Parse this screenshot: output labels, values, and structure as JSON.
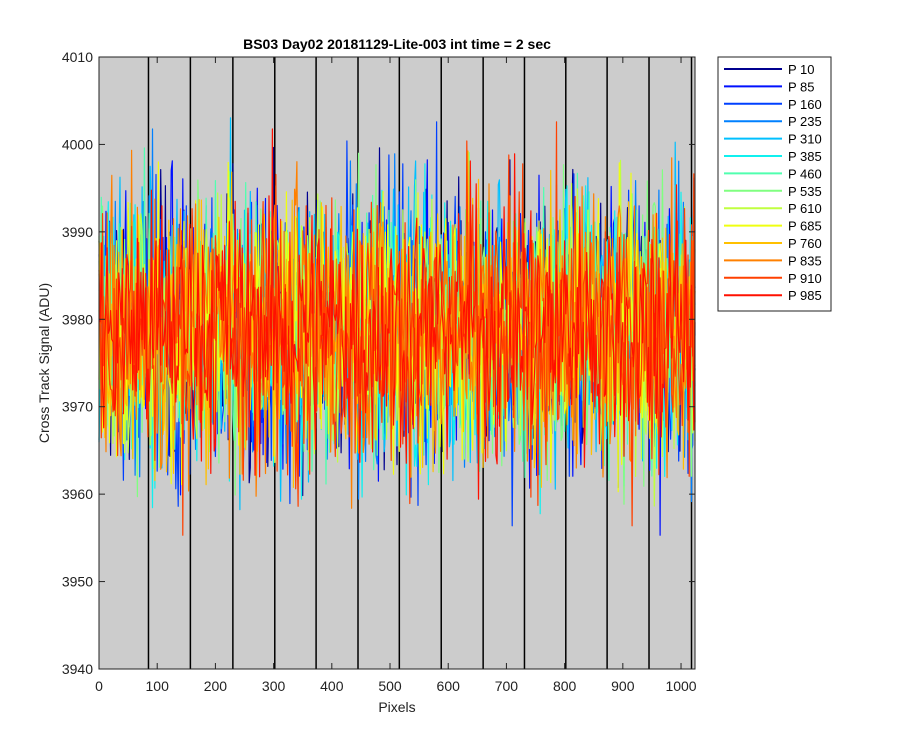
{
  "chart_data": {
    "type": "line",
    "title": "BS03 Day02 20181129-Lite-003 int time = 2 sec",
    "xlabel": "Pixels",
    "ylabel": "Cross Track Signal (ADU)",
    "xlim": [
      0,
      1024
    ],
    "ylim": [
      3940,
      4010
    ],
    "xticks": [
      0,
      100,
      200,
      300,
      400,
      500,
      600,
      700,
      800,
      900,
      1000
    ],
    "yticks": [
      3940,
      3950,
      3960,
      3970,
      3980,
      3990,
      4000,
      4010
    ],
    "vertical_lines_x": [
      85,
      157,
      230,
      302,
      373,
      445,
      516,
      588,
      660,
      731,
      802,
      873,
      945,
      1018
    ],
    "plot_background": "#cccccc",
    "vertical_line_color": "#000000",
    "legend_position": "outside-top-right",
    "series_summary": {
      "mean": 3979,
      "noise_range": [
        3955,
        3997
      ]
    },
    "series": [
      {
        "name": "P 10",
        "color": "#00008f"
      },
      {
        "name": "P 85",
        "color": "#0010ff"
      },
      {
        "name": "P 160",
        "color": "#0040ff"
      },
      {
        "name": "P 235",
        "color": "#0080ff"
      },
      {
        "name": "P 310",
        "color": "#00c0ff"
      },
      {
        "name": "P 385",
        "color": "#10f0ef"
      },
      {
        "name": "P 460",
        "color": "#50ffaf"
      },
      {
        "name": "P 535",
        "color": "#80ff80"
      },
      {
        "name": "P 610",
        "color": "#c0ff40"
      },
      {
        "name": "P 685",
        "color": "#efff10"
      },
      {
        "name": "P 760",
        "color": "#ffc000"
      },
      {
        "name": "P 835",
        "color": "#ff8000"
      },
      {
        "name": "P 910",
        "color": "#ff4000"
      },
      {
        "name": "P 985",
        "color": "#ff1000"
      }
    ]
  }
}
